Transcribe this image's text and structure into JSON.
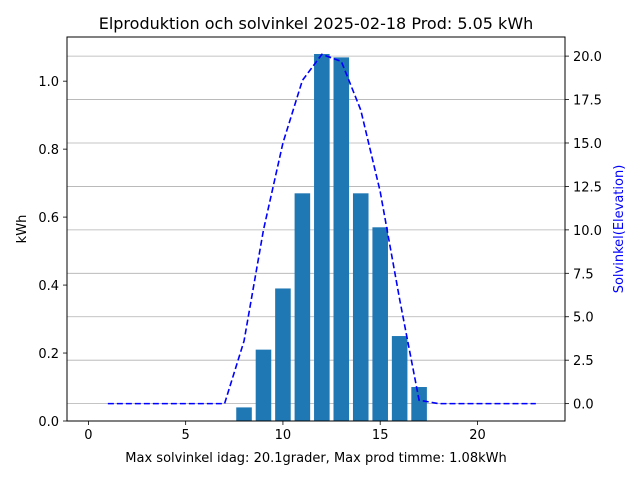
{
  "chart_data": {
    "type": "bar",
    "title": "Elproduktion och solvinkel 2025-02-18 Prod: 5.05 kWh",
    "xlabel": "Max solvinkel idag: 20.1grader, Max prod timme: 1.08kWh",
    "ylabel": "kWh",
    "ylabel_right": "Solvinkel(Elevation)",
    "xlim": [
      -1.1,
      24.5
    ],
    "ylim": [
      0,
      1.13
    ],
    "ylim_right": [
      -1.0,
      21.1
    ],
    "x_ticks": [
      0,
      5,
      10,
      15,
      20
    ],
    "y_ticks": [
      0.0,
      0.2,
      0.4,
      0.6,
      0.8,
      1.0
    ],
    "y_ticks_right": [
      0.0,
      2.5,
      5.0,
      7.5,
      10.0,
      12.5,
      15.0,
      17.5,
      20.0
    ],
    "grid": "horizontal, right axis",
    "bar_series": {
      "x": [
        8,
        9,
        10,
        11,
        12,
        13,
        14,
        15,
        16,
        17
      ],
      "values": [
        0.04,
        0.21,
        0.39,
        0.67,
        1.08,
        1.07,
        0.67,
        0.57,
        0.25,
        0.1
      ],
      "color": "#1f77b4"
    },
    "line_series": {
      "x": [
        1,
        2,
        3,
        4,
        5,
        6,
        7,
        8,
        9,
        10,
        11,
        12,
        13,
        14,
        15,
        16,
        17,
        18,
        19,
        20,
        21,
        22,
        23
      ],
      "values": [
        0,
        0,
        0,
        0,
        0,
        0,
        0,
        3.6,
        10.0,
        15.0,
        18.6,
        20.1,
        19.7,
        16.9,
        12.2,
        6.0,
        0.2,
        0,
        0,
        0,
        0,
        0,
        0
      ],
      "color": "#0000ff",
      "style": "dashed"
    }
  }
}
